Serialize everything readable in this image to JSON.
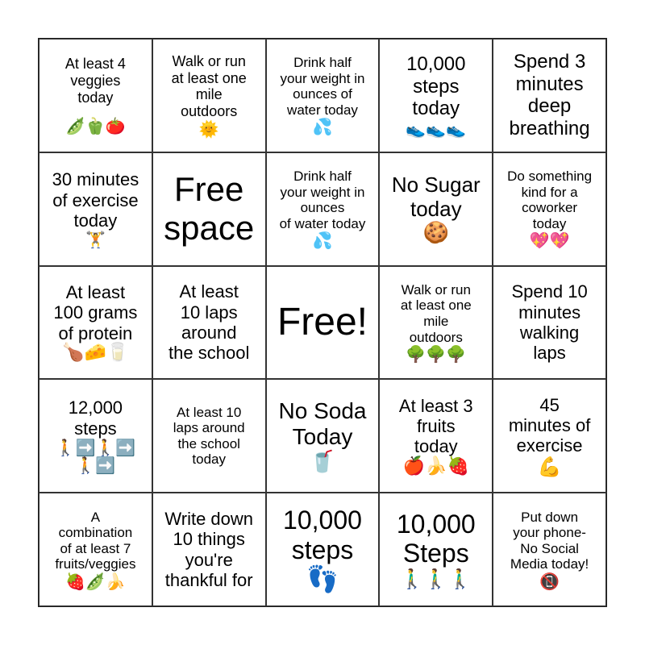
{
  "cells": [
    {
      "text": "At least 4\nveggies\ntoday",
      "emoji": "🫛🫑🍅"
    },
    {
      "text": "Walk or run\nat least one\nmile\noutdoors",
      "emoji": "🌞"
    },
    {
      "text": "Drink half\nyour weight in\nounces of\nwater today",
      "emoji": "💦"
    },
    {
      "text": "10,000\nsteps\ntoday",
      "emoji": "👟👟👟"
    },
    {
      "text": "Spend 3\nminutes\ndeep\nbreathing",
      "emoji": ""
    },
    {
      "text": "30 minutes\nof exercise\ntoday",
      "emoji": "🏋️"
    },
    {
      "text": "Free\nspace",
      "emoji": ""
    },
    {
      "text": "Drink half\nyour weight in\nounces\nof water today",
      "emoji": "💦"
    },
    {
      "text": "No Sugar\ntoday",
      "emoji": "🍪"
    },
    {
      "text": "Do something\nkind for a\ncoworker\ntoday",
      "emoji": "💖💖"
    },
    {
      "text": "At least\n100 grams\nof protein",
      "emoji": "🍗🧀🥛"
    },
    {
      "text": "At least\n10 laps\naround\nthe school",
      "emoji": ""
    },
    {
      "text": "Free!",
      "emoji": ""
    },
    {
      "text": "Walk or run\nat least one\nmile\noutdoors",
      "emoji": "🌳🌳🌳"
    },
    {
      "text": "Spend 10\nminutes\nwalking\nlaps",
      "emoji": ""
    },
    {
      "text": "12,000\nsteps",
      "emoji": "🚶➡️🚶➡️\n🚶➡️"
    },
    {
      "text": "At least 10\nlaps around\nthe school\ntoday",
      "emoji": ""
    },
    {
      "text": "No Soda\nToday",
      "emoji": "🥤"
    },
    {
      "text": "At least 3\nfruits\ntoday",
      "emoji": "🍎🍌🍓"
    },
    {
      "text": "45\nminutes of\nexercise",
      "emoji": "💪"
    },
    {
      "text": "A\ncombination\nof at least 7\nfruits/veggies",
      "emoji": "🍓🫛🍌"
    },
    {
      "text": "Write down\n10 things\nyou're\nthankful for",
      "emoji": ""
    },
    {
      "text": "10,000\nsteps",
      "emoji": "👣"
    },
    {
      "text": "10,000\nSteps",
      "emoji": "🚶‍♂️🚶‍♂️🚶‍♂️"
    },
    {
      "text": "Put down\nyour phone-\nNo Social\nMedia today!",
      "emoji": "📵"
    }
  ]
}
